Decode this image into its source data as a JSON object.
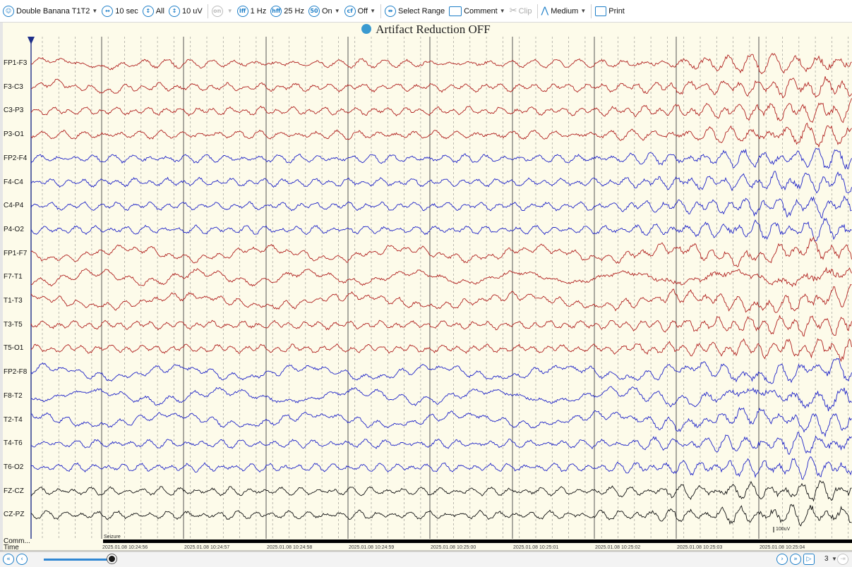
{
  "toolbar": {
    "montage": "Double Banana T1T2",
    "timebase": "10 sec",
    "channels": "All",
    "sensitivity": "10 uV",
    "lff": "1 Hz",
    "hff": "25 Hz",
    "notch": "On",
    "cf": "Off",
    "select_range": "Select Range",
    "comment": "Comment",
    "clip": "Clip",
    "speed": "Medium",
    "print": "Print",
    "icon_lff": "lff",
    "icon_hff": "hff",
    "icon_notch": "50",
    "icon_cf": "cf",
    "icon_disabled": "on"
  },
  "title": "Artifact Reduction OFF",
  "channels": [
    {
      "label": "FP1-F3",
      "color": "#b0201e"
    },
    {
      "label": "F3-C3",
      "color": "#b0201e"
    },
    {
      "label": "C3-P3",
      "color": "#b0201e"
    },
    {
      "label": "P3-O1",
      "color": "#b0201e"
    },
    {
      "label": "FP2-F4",
      "color": "#1f24c8"
    },
    {
      "label": "F4-C4",
      "color": "#1f24c8"
    },
    {
      "label": "C4-P4",
      "color": "#1f24c8"
    },
    {
      "label": "P4-O2",
      "color": "#1f24c8"
    },
    {
      "label": "FP1-F7",
      "color": "#b0201e"
    },
    {
      "label": "F7-T1",
      "color": "#b0201e"
    },
    {
      "label": "T1-T3",
      "color": "#b0201e"
    },
    {
      "label": "T3-T5",
      "color": "#b0201e"
    },
    {
      "label": "T5-O1",
      "color": "#b0201e"
    },
    {
      "label": "FP2-F8",
      "color": "#1f24c8"
    },
    {
      "label": "F8-T2",
      "color": "#1f24c8"
    },
    {
      "label": "T2-T4",
      "color": "#1f24c8"
    },
    {
      "label": "T4-T6",
      "color": "#1f24c8"
    },
    {
      "label": "T6-O2",
      "color": "#1f24c8"
    },
    {
      "label": "FZ-CZ",
      "color": "#111111"
    },
    {
      "label": "CZ-PZ",
      "color": "#111111"
    }
  ],
  "comment_track_label": "Comm...",
  "time_track_label": "Time",
  "seizure_label": "Seizure",
  "scale_bar_label": "100uV",
  "time_labels": [
    "2025.01.08 10:24:56",
    "2025.01.08 10:24:57",
    "2025.01.08 10:24:58",
    "2025.01.08 10:24:59",
    "2025.01.08 10:25:00",
    "2025.01.08 10:25:01",
    "2025.01.08 10:25:02",
    "2025.01.08 10:25:03",
    "2025.01.08 10:25:04"
  ],
  "page_number": "3",
  "colors": {
    "background": "#fdfbea",
    "accent": "#1e7fc8",
    "red_trace": "#b0201e",
    "blue_trace": "#1f24c8",
    "black_trace": "#111111"
  }
}
